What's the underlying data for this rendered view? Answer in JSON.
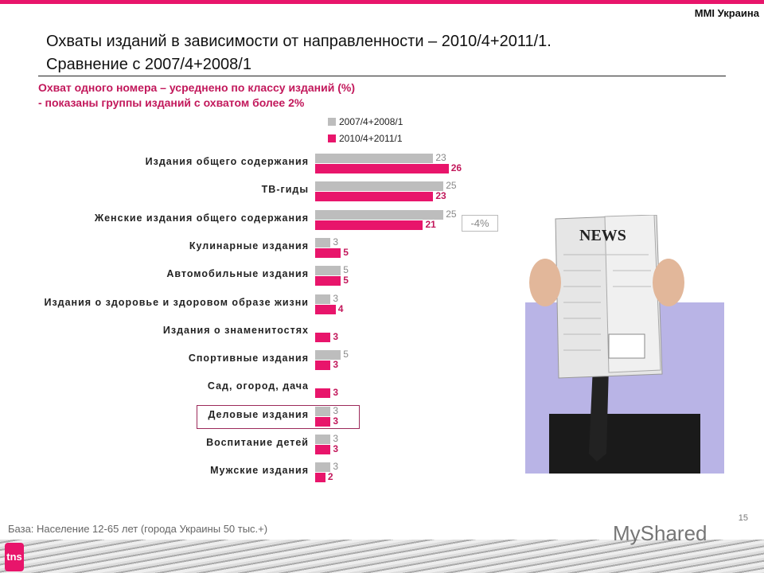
{
  "brand": "MMI Украина",
  "title_line1": "Охваты изданий в зависимости от направленности – 2010/4+2011/1.",
  "title_line2": "Сравнение с 2007/4+2008/1",
  "subtitle_line1": "Охват одного номера – усреднено по классу изданий (%)",
  "subtitle_line2": "- показаны группы изданий с охватом более 2%",
  "delta_label": "-4%",
  "page_number": "15",
  "base_note": "База: Население 12-65 лет (города Украины 50 тыс.+)",
  "logo": "tns",
  "watermark": "MyShared",
  "newspaper_heading": "NEWS",
  "chart_data": {
    "type": "bar",
    "orientation": "horizontal",
    "categories": [
      "Издания общего содержания",
      "ТВ-гиды",
      "Женские издания общего содержания",
      "Кулинарные издания",
      "Автомобильные издания",
      "Издания о здоровье и здоровом образе жизни",
      "Издания о знаменитостях",
      "Спортивные издания",
      "Сад, огород, дача",
      "Деловые издания",
      "Воспитание детей",
      "Мужские издания"
    ],
    "series": [
      {
        "name": "2007/4+2008/1",
        "color": "#bdbdbd",
        "values": [
          23,
          25,
          25,
          3,
          5,
          3,
          null,
          5,
          null,
          3,
          3,
          3
        ]
      },
      {
        "name": "2010/4+2011/1",
        "color": "#e8156b",
        "values": [
          26,
          23,
          21,
          5,
          5,
          4,
          3,
          3,
          3,
          3,
          3,
          2
        ]
      }
    ],
    "legend": "top",
    "grid": false,
    "highlighted_category": "Деловые издания"
  }
}
